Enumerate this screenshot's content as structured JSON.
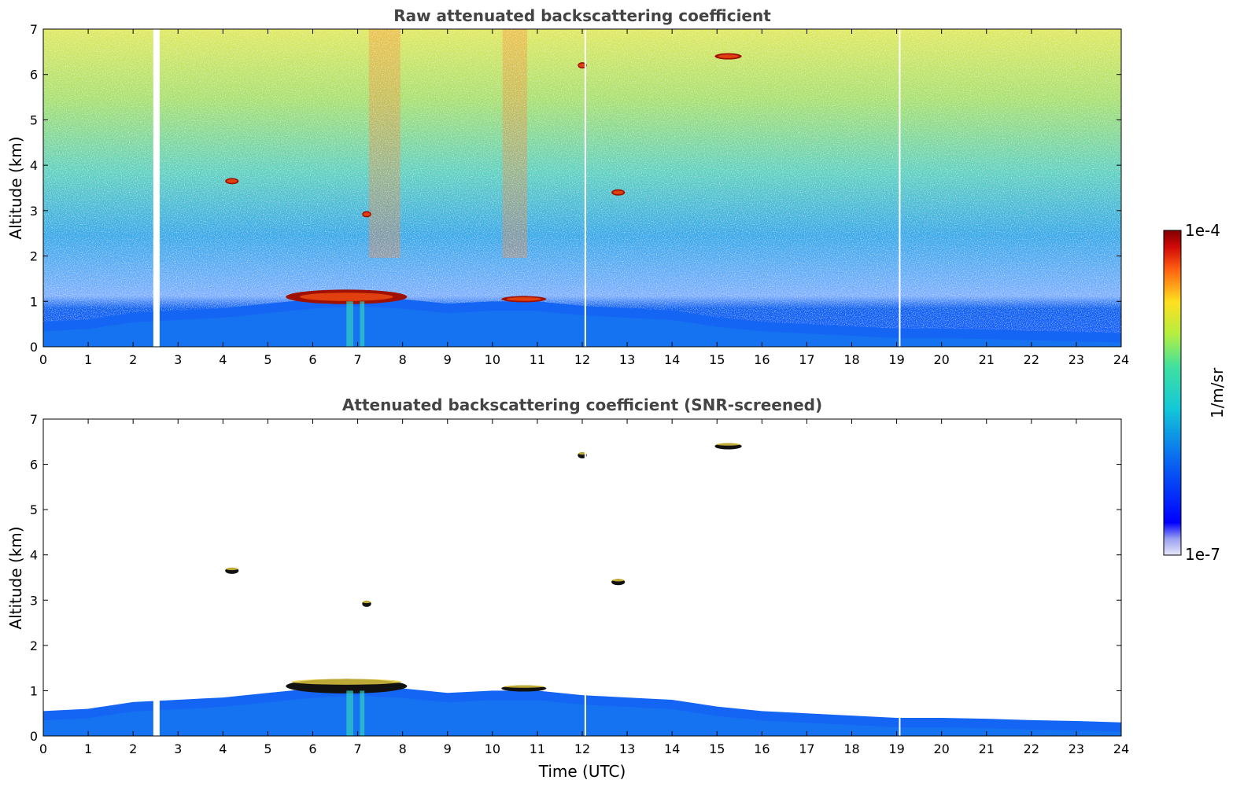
{
  "chart_data": [
    {
      "type": "heatmap",
      "title": "Raw attenuated backscattering coefficient",
      "xlabel": "",
      "ylabel": "Altitude (km)",
      "xlim": [
        0,
        24
      ],
      "ylim": [
        0,
        7
      ],
      "x_ticks": [
        "0",
        "1",
        "2",
        "3",
        "4",
        "5",
        "6",
        "7",
        "8",
        "9",
        "10",
        "11",
        "12",
        "13",
        "14",
        "15",
        "16",
        "17",
        "18",
        "19",
        "20",
        "21",
        "22",
        "23",
        "24"
      ],
      "y_ticks": [
        "0",
        "1",
        "2",
        "3",
        "4",
        "5",
        "6",
        "7"
      ],
      "colormap": "jet",
      "data_gaps_utc": [
        2.45,
        12.05,
        19.05
      ],
      "boundary_layer_top_km": [
        [
          0,
          0.55
        ],
        [
          1,
          0.6
        ],
        [
          2,
          0.75
        ],
        [
          3,
          0.8
        ],
        [
          4,
          0.85
        ],
        [
          5,
          0.95
        ],
        [
          6,
          1.05
        ],
        [
          7,
          1.1
        ],
        [
          8,
          1.05
        ],
        [
          9,
          0.95
        ],
        [
          10,
          1.0
        ],
        [
          11,
          1.0
        ],
        [
          12,
          0.9
        ],
        [
          13,
          0.85
        ],
        [
          14,
          0.8
        ],
        [
          15,
          0.65
        ],
        [
          16,
          0.55
        ],
        [
          17,
          0.5
        ],
        [
          18,
          0.45
        ],
        [
          19,
          0.4
        ],
        [
          20,
          0.4
        ],
        [
          21,
          0.38
        ],
        [
          22,
          0.35
        ],
        [
          23,
          0.33
        ],
        [
          24,
          0.3
        ]
      ],
      "clouds": [
        {
          "t0": 5.4,
          "t1": 8.1,
          "alt_km": 1.1,
          "note": ""
        },
        {
          "t0": 10.2,
          "t1": 11.2,
          "alt_km": 1.05,
          "note": ""
        },
        {
          "t0": 4.05,
          "t1": 4.35,
          "alt_km": 3.65,
          "note": ""
        },
        {
          "t0": 7.1,
          "t1": 7.3,
          "alt_km": 2.92,
          "note": ""
        },
        {
          "t0": 12.65,
          "t1": 12.95,
          "alt_km": 3.4,
          "note": ""
        },
        {
          "t0": 11.9,
          "t1": 12.1,
          "alt_km": 6.2,
          "note": ""
        },
        {
          "t0": 14.95,
          "t1": 15.55,
          "alt_km": 6.4,
          "note": ""
        }
      ]
    },
    {
      "type": "heatmap",
      "title": "Attenuated backscattering coefficient (SNR-screened)",
      "xlabel": "Time (UTC)",
      "ylabel": "Altitude (km)",
      "xlim": [
        0,
        24
      ],
      "ylim": [
        0,
        7
      ],
      "x_ticks": [
        "0",
        "1",
        "2",
        "3",
        "4",
        "5",
        "6",
        "7",
        "8",
        "9",
        "10",
        "11",
        "12",
        "13",
        "14",
        "15",
        "16",
        "17",
        "18",
        "19",
        "20",
        "21",
        "22",
        "23",
        "24"
      ],
      "y_ticks": [
        "0",
        "1",
        "2",
        "3",
        "4",
        "5",
        "6",
        "7"
      ],
      "colormap": "jet",
      "screened": true
    }
  ],
  "colorbar": {
    "label": "1/m/sr",
    "max_label": "1e-4",
    "min_label": "1e-7",
    "scale": "log",
    "range": [
      1e-07,
      0.0001
    ]
  }
}
